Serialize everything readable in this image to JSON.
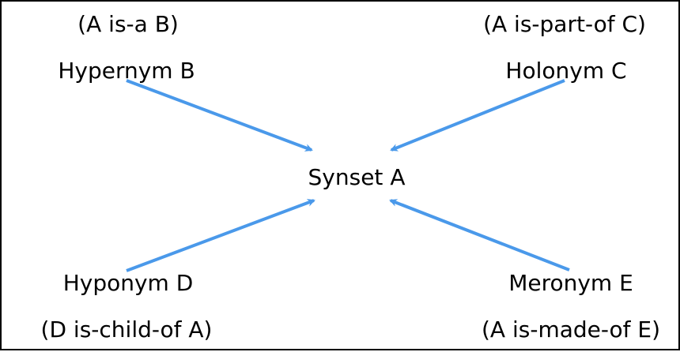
{
  "diagram": {
    "center": {
      "label": "Synset A"
    },
    "nodes": {
      "hypernym": {
        "label": "Hypernym B",
        "relation": "(A is-a B)"
      },
      "holonym": {
        "label": "Holonym C",
        "relation": "(A is-part-of C)"
      },
      "hyponym": {
        "label": "Hyponym D",
        "relation": "(D is-child-of A)"
      },
      "meronym": {
        "label": "Meronym E",
        "relation": "(A is-made-of E)"
      }
    },
    "arrow_color": "#4a99ea",
    "border_color": "#000000"
  }
}
